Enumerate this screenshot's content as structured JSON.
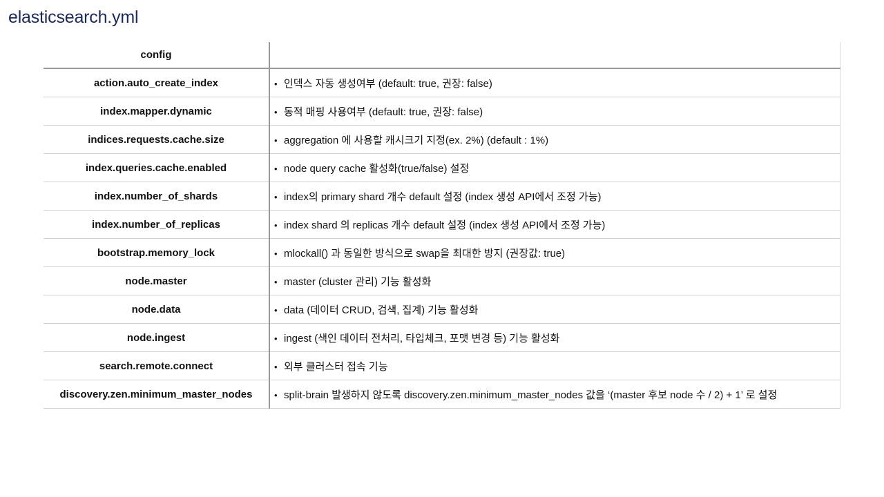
{
  "title": "elasticsearch.yml",
  "table": {
    "header": {
      "key": "config",
      "value": ""
    },
    "rows": [
      {
        "key": "action.auto_create_index",
        "value": "인덱스 자동 생성여부 (default: true, 권장: false)"
      },
      {
        "key": "index.mapper.dynamic",
        "value": "동적 매핑 사용여부 (default: true, 권장: false)"
      },
      {
        "key": "indices.requests.cache.size",
        "value": "aggregation 에 사용할 캐시크기 지정(ex. 2%) (default : 1%)"
      },
      {
        "key": "index.queries.cache.enabled",
        "value": "node query cache 활성화(true/false) 설정"
      },
      {
        "key": "index.number_of_shards",
        "value": "index의 primary shard 개수 default 설정 (index 생성 API에서 조정 가능)"
      },
      {
        "key": "index.number_of_replicas",
        "value": "index shard 의 replicas 개수 default 설정 (index 생성 API에서 조정 가능)"
      },
      {
        "key": "bootstrap.memory_lock",
        "value": "mlockall() 과 동일한 방식으로 swap을 최대한 방지 (권장값: true)"
      },
      {
        "key": "node.master",
        "value": "master (cluster 관리) 기능 활성화"
      },
      {
        "key": "node.data",
        "value": "data (데이터 CRUD, 검색, 집계) 기능 활성화"
      },
      {
        "key": "node.ingest",
        "value": "ingest (색인 데이터 전처리, 타입체크, 포맷 변경 등) 기능 활성화"
      },
      {
        "key": "search.remote.connect",
        "value": "외부 클러스터 접속 기능"
      },
      {
        "key": "discovery.zen.minimum_master_nodes",
        "value": "split-brain 발생하지 않도록 discovery.zen.minimum_master_nodes 값을 ‘(master 후보 node 수 / 2) + 1’ 로 설정"
      }
    ]
  }
}
